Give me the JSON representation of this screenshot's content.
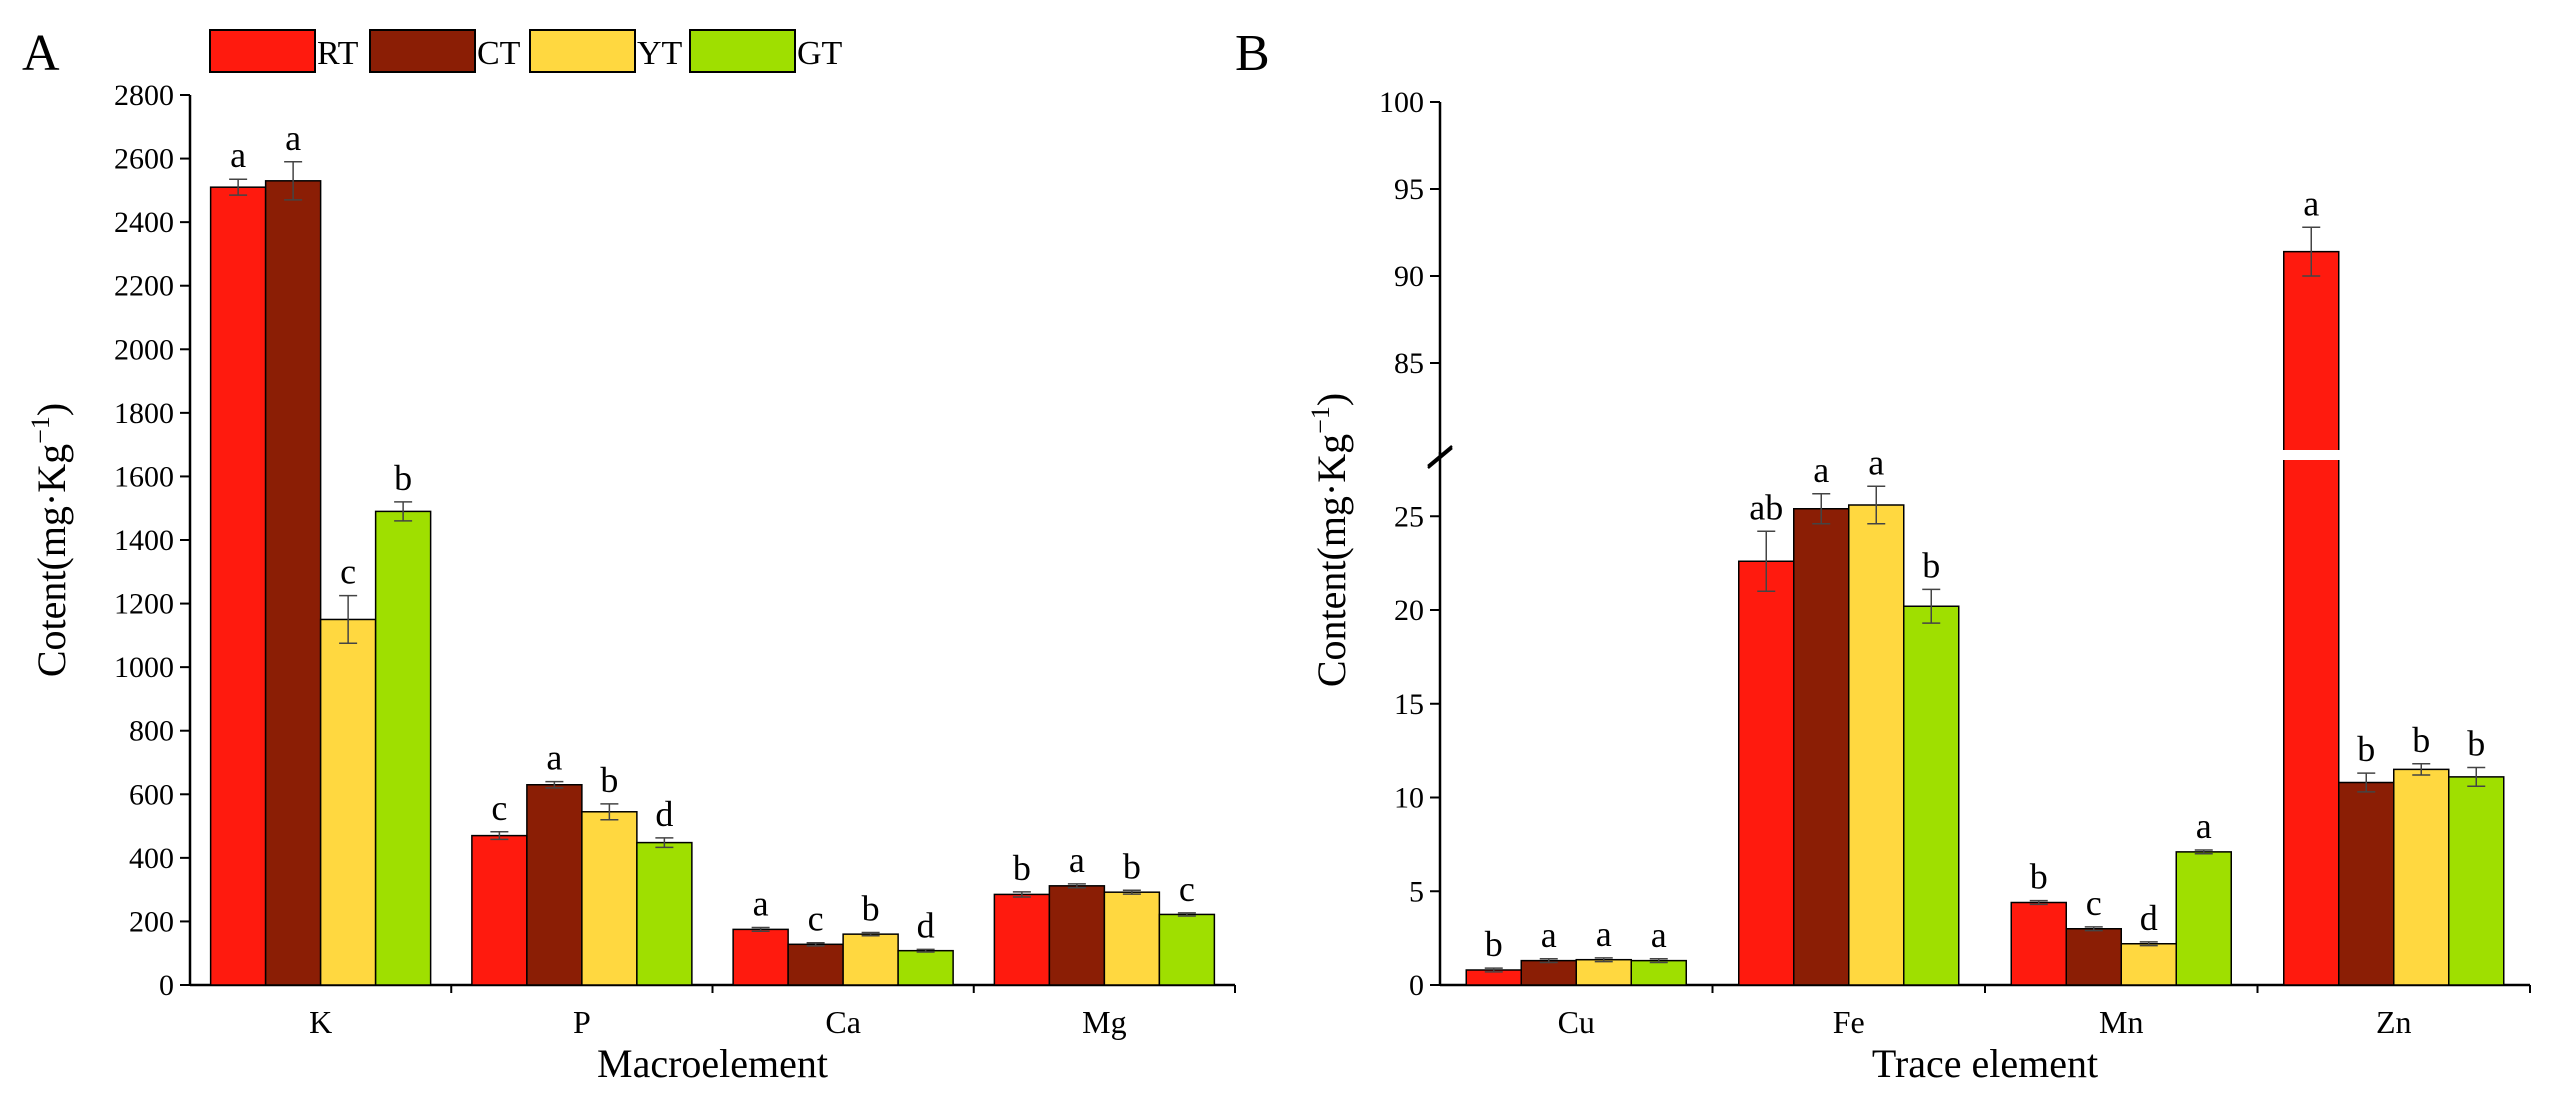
{
  "legend": [
    {
      "name": "RT",
      "color": "#FF1A0E"
    },
    {
      "name": "CT",
      "color": "#8B1E05"
    },
    {
      "name": "YT",
      "color": "#FFD840"
    },
    {
      "name": "GT",
      "color": "#9FDF00"
    }
  ],
  "chart_data": [
    {
      "type": "bar",
      "panel_label": "A",
      "xlabel": "Macroelement",
      "ylabel": "Cotent(mg·Kg",
      "ylabel_sup": "−1",
      "ylabel_close": ")",
      "ylim": [
        0,
        2800
      ],
      "yticks": [
        0,
        200,
        400,
        600,
        800,
        1000,
        1200,
        1400,
        1600,
        1800,
        2000,
        2200,
        2400,
        2600,
        2800
      ],
      "categories": [
        "K",
        "P",
        "Ca",
        "Mg"
      ],
      "series": [
        {
          "name": "RT",
          "values": [
            2510,
            470,
            175,
            285
          ],
          "errors": [
            25,
            12,
            6,
            8
          ],
          "letters": [
            "a",
            "c",
            "a",
            "b"
          ]
        },
        {
          "name": "CT",
          "values": [
            2530,
            630,
            128,
            312
          ],
          "errors": [
            60,
            10,
            5,
            6
          ],
          "letters": [
            "a",
            "a",
            "c",
            "a"
          ]
        },
        {
          "name": "YT",
          "values": [
            1150,
            545,
            160,
            292
          ],
          "errors": [
            75,
            25,
            5,
            6
          ],
          "letters": [
            "c",
            "b",
            "b",
            "b"
          ]
        },
        {
          "name": "GT",
          "values": [
            1490,
            448,
            108,
            222
          ],
          "errors": [
            30,
            15,
            4,
            5
          ],
          "letters": [
            "b",
            "d",
            "d",
            "c"
          ]
        }
      ]
    },
    {
      "type": "bar",
      "panel_label": "B",
      "xlabel": "Trace element",
      "ylabel": "Content(mg·Kg",
      "ylabel_sup": "−1",
      "ylabel_close": ")",
      "ylim": [
        0,
        100
      ],
      "axis_break": [
        28,
        80
      ],
      "yticks": [
        0,
        5,
        10,
        15,
        20,
        25,
        85,
        90,
        95,
        100
      ],
      "categories": [
        "Cu",
        "Fe",
        "Mn",
        "Zn"
      ],
      "series": [
        {
          "name": "RT",
          "values": [
            0.8,
            22.6,
            4.4,
            91.4
          ],
          "errors": [
            0.1,
            1.6,
            0.1,
            1.4
          ],
          "letters": [
            "b",
            "ab",
            "b",
            "a"
          ]
        },
        {
          "name": "CT",
          "values": [
            1.3,
            25.4,
            3.0,
            10.8
          ],
          "errors": [
            0.1,
            0.8,
            0.1,
            0.5
          ],
          "letters": [
            "a",
            "a",
            "c",
            "b"
          ]
        },
        {
          "name": "YT",
          "values": [
            1.35,
            25.6,
            2.2,
            11.5
          ],
          "errors": [
            0.1,
            1.0,
            0.1,
            0.3
          ],
          "letters": [
            "a",
            "a",
            "d",
            "b"
          ]
        },
        {
          "name": "GT",
          "values": [
            1.3,
            20.2,
            7.1,
            11.1
          ],
          "errors": [
            0.1,
            0.9,
            0.1,
            0.5
          ],
          "letters": [
            "a",
            "b",
            "a",
            "b"
          ]
        }
      ]
    }
  ]
}
